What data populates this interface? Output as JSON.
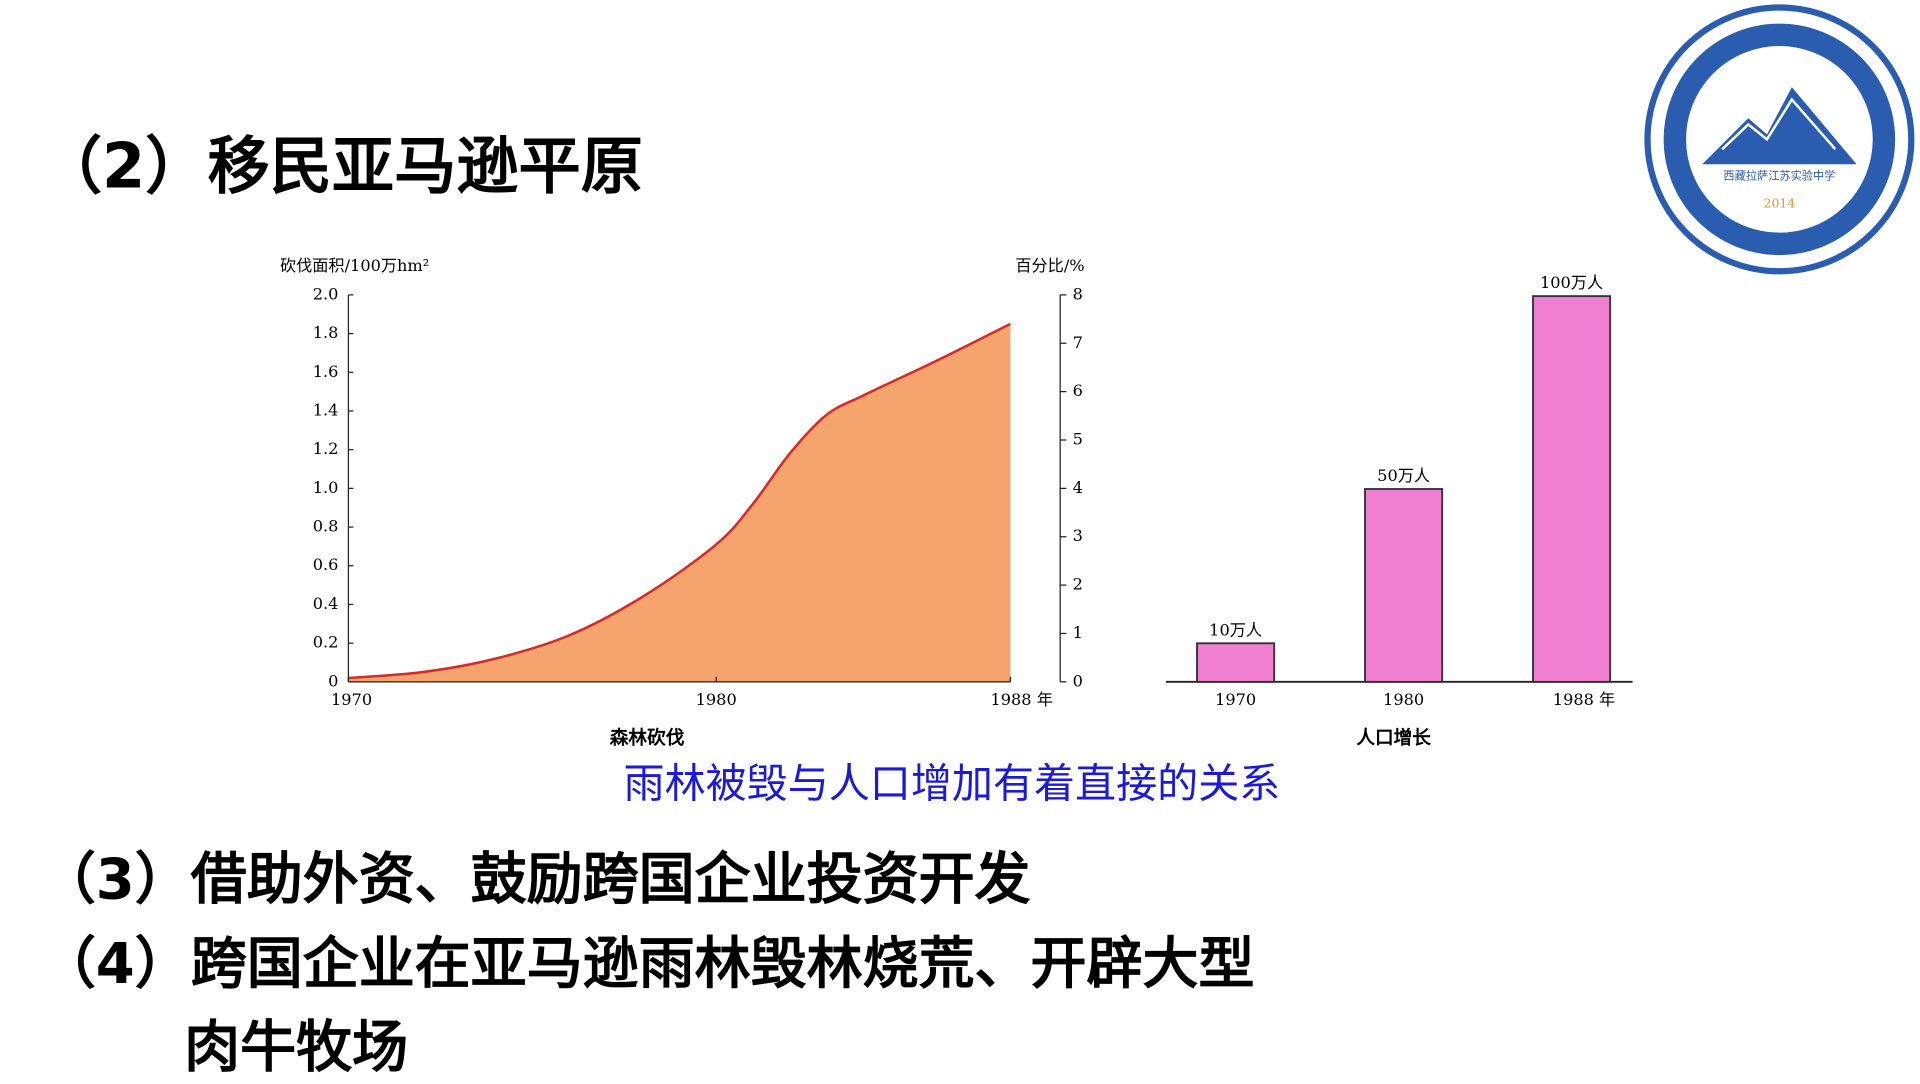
{
  "slide": {
    "heading": "（2）移民亚马逊平原",
    "caption": "雨林被毁与人口增加有着直接的关系",
    "points": [
      "（3）借助外资、鼓励跨国企业投资开发",
      "（4）跨国企业在亚马逊雨林毁林烧荒、开辟大型",
      "肉牛牧场"
    ],
    "logo": {
      "name": "西藏拉萨江苏实验中学",
      "year": "2014"
    }
  },
  "chart_data": [
    {
      "type": "area",
      "title": "森林砍伐",
      "ylabel": "砍伐面积/100万hm²",
      "y2label": "百分比/%",
      "x": [
        1970,
        1972,
        1974,
        1976,
        1978,
        1980,
        1981,
        1982,
        1983,
        1984,
        1986,
        1988
      ],
      "values": [
        0.02,
        0.05,
        0.12,
        0.24,
        0.44,
        0.71,
        0.92,
        1.18,
        1.38,
        1.48,
        1.66,
        1.85
      ],
      "color": "#f4a46c",
      "line_color": "#d42a2a",
      "xlim": [
        1970,
        1988
      ],
      "xticks": [
        1970,
        1980,
        {
          "value": 1988,
          "label": "1988 年"
        }
      ],
      "ylim": [
        0,
        2
      ],
      "yticks": [
        0,
        0.2,
        0.4,
        0.6,
        0.8,
        {
          "value": 1,
          "label": "1.0"
        },
        1.2,
        1.4,
        1.6,
        1.8,
        {
          "value": 2,
          "label": "2.0"
        }
      ],
      "y2lim": [
        0,
        8
      ],
      "y2ticks": [
        0,
        1,
        2,
        3,
        4,
        5,
        6,
        7,
        8
      ]
    },
    {
      "type": "bar",
      "title": "人口增长",
      "categories": [
        "1970",
        "1980",
        "1988 年"
      ],
      "values": [
        10,
        50,
        100
      ],
      "value_labels": [
        "10万人",
        "50万人",
        "100万人"
      ],
      "color": "#f07fd2"
    }
  ]
}
